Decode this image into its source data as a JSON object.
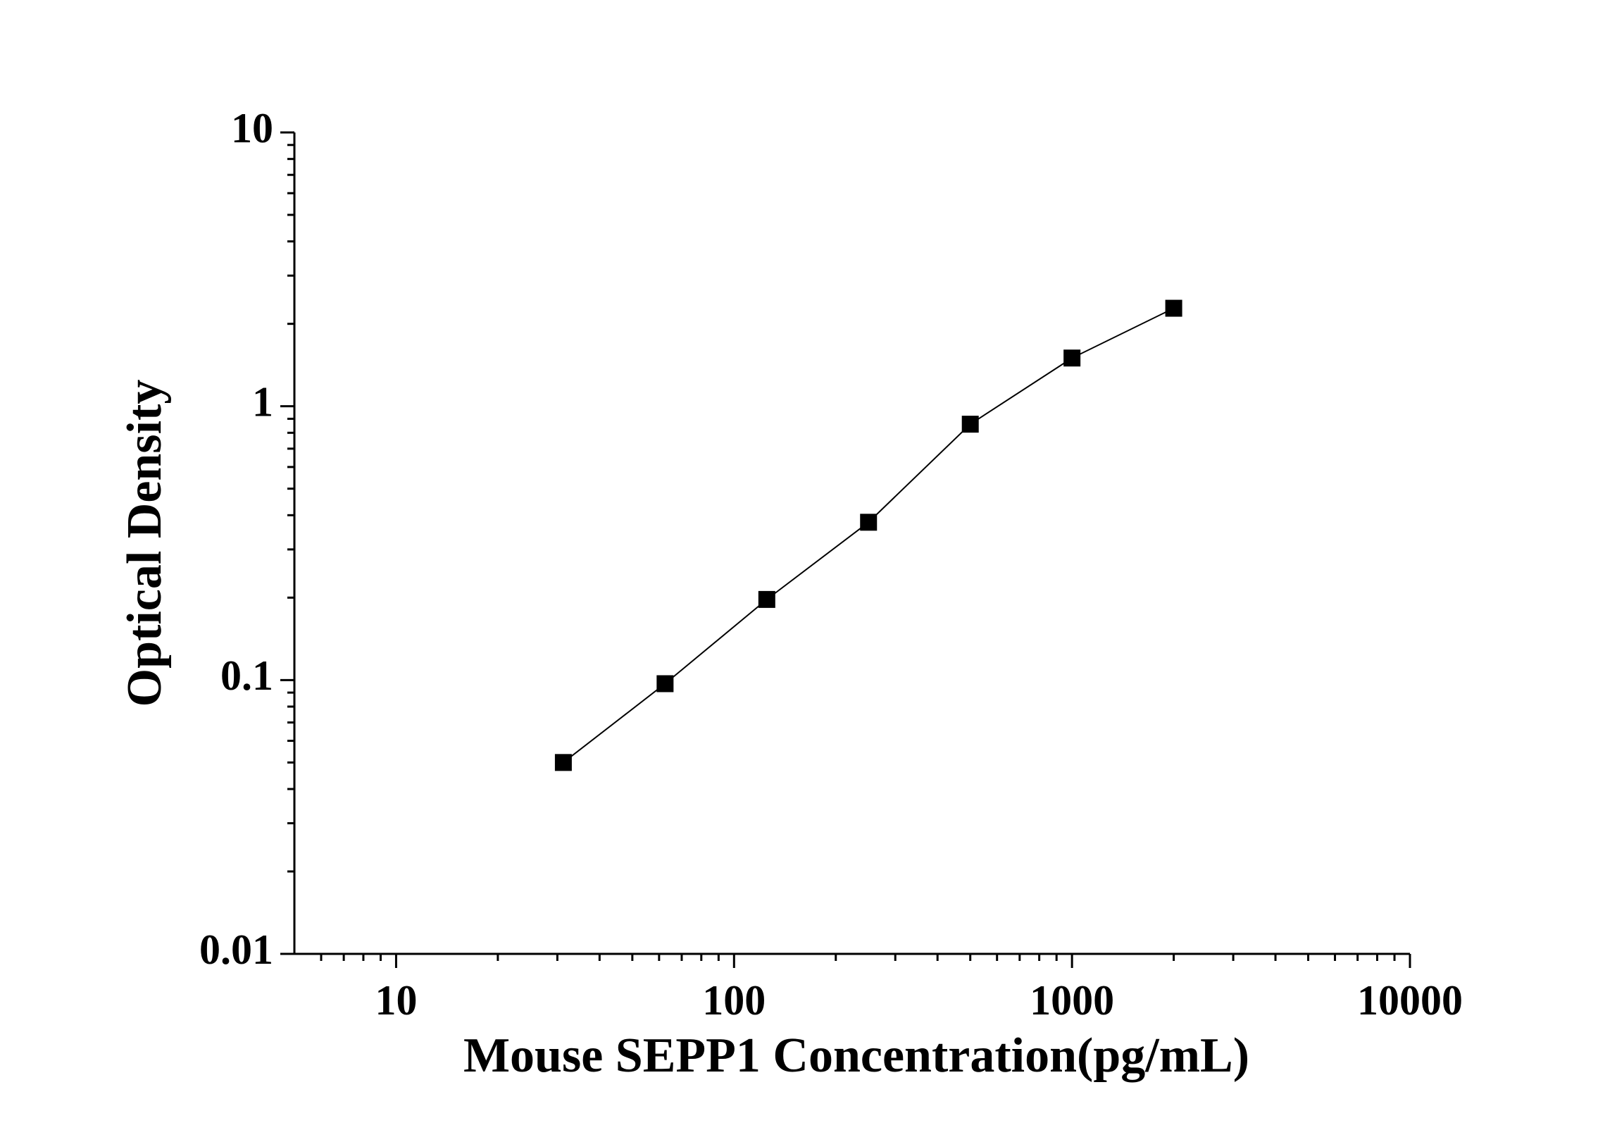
{
  "chart_data": {
    "type": "line",
    "x_label": "Mouse SEPP1 Concentration(pg/mL)",
    "y_label": "Optical Density",
    "x": [
      31.25,
      62.5,
      125,
      250,
      500,
      1000,
      2000
    ],
    "series": [
      {
        "color": "#000000",
        "values": [
          0.05,
          0.097,
          0.197,
          0.377,
          0.86,
          1.5,
          2.28
        ]
      }
    ],
    "xlim": [
      5,
      10000
    ],
    "xticks": [
      10,
      100,
      1000,
      10000
    ],
    "xscale": "log",
    "ylim": [
      0.01,
      10
    ],
    "yticks": [
      0.01,
      0.1,
      1,
      10
    ],
    "yscale": "log",
    "markers": "square"
  }
}
